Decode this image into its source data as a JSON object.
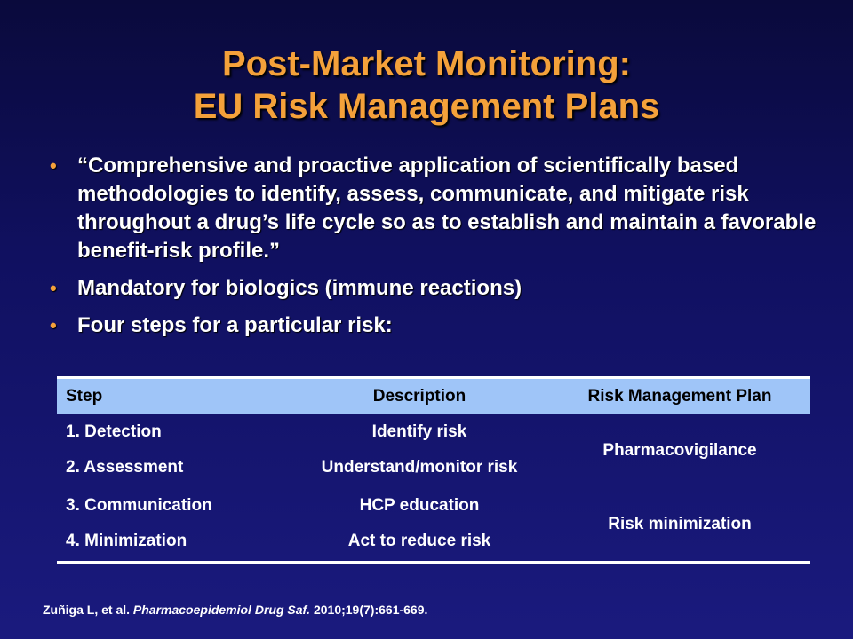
{
  "slide": {
    "title_line1": "Post-Market Monitoring:",
    "title_line2": "EU Risk Management Plans",
    "bullets": [
      "“Comprehensive and proactive application of scientifically based methodologies to identify, assess, communicate, and mitigate risk throughout a drug’s life cycle so as to establish and maintain a favorable benefit-risk profile.”",
      "Mandatory for biologics (immune reactions)",
      "Four steps for a particular risk:"
    ],
    "bullet_symbol": "•"
  },
  "table": {
    "headers": [
      "Step",
      "Description",
      "Risk Management Plan"
    ],
    "rows": [
      {
        "step": "1. Detection",
        "description": "Identify risk"
      },
      {
        "step": "2. Assessment",
        "description": "Understand/monitor risk"
      },
      {
        "step": "3. Communication",
        "description": "HCP education"
      },
      {
        "step": "4. Minimization",
        "description": "Act to reduce risk"
      }
    ],
    "plans": [
      "Pharmacovigilance",
      "Risk minimization"
    ]
  },
  "citation": {
    "authors": "Zuñiga L, et al.",
    "journal": "Pharmacoepidemiol Drug Saf.",
    "details": "2010;19(7):661-669."
  },
  "colors": {
    "accent": "#f4a13a",
    "background_top": "#0a0a3c",
    "background_bottom": "#1a1a7e",
    "table_header": "#9fc5f8"
  }
}
